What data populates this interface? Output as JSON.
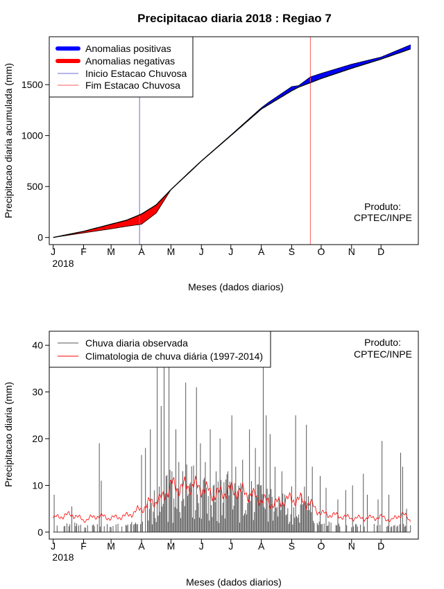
{
  "chart_data": [
    {
      "type": "area",
      "title": "Precipitacao diaria 2018 : Regiao 7",
      "xlabel": "Meses (dados diarios)",
      "ylabel": "Precipitacao diaria acumulada (mm)",
      "year_label": "2018",
      "month_labels": [
        "J",
        "F",
        "M",
        "A",
        "M",
        "J",
        "J",
        "A",
        "S",
        "O",
        "N",
        "D"
      ],
      "yticks": [
        0,
        500,
        1000,
        1500
      ],
      "ylim": [
        -70,
        1970
      ],
      "xlim_days": [
        -4,
        372
      ],
      "product_label": [
        "Produto:",
        "CPTEC/INPE"
      ],
      "legend": {
        "position": "top-left",
        "items": [
          {
            "label": "Anomalias positivas",
            "color": "#0000ff",
            "style": "thick"
          },
          {
            "label": "Anomalias negativas",
            "color": "#ff0000",
            "style": "thick"
          },
          {
            "label": "Inicio Estacao Chuvosa",
            "color": "#6b6bd6",
            "style": "thin"
          },
          {
            "label": "Fim Estacao Chuvosa",
            "color": "#ff5a5a",
            "style": "thin"
          }
        ]
      },
      "rainy_season_start_day": 88,
      "rainy_season_end_day": 262,
      "climatology_cumulative": {
        "day": [
          0,
          31,
          59,
          75,
          90,
          105,
          120,
          140,
          151,
          181,
          212,
          243,
          250,
          265,
          273,
          304,
          334,
          364
        ],
        "value": [
          0,
          60,
          130,
          170,
          230,
          320,
          470,
          650,
          750,
          1000,
          1260,
          1440,
          1475,
          1530,
          1560,
          1660,
          1750,
          1850
        ]
      },
      "observed_cumulative": {
        "day": [
          0,
          31,
          59,
          75,
          90,
          105,
          120,
          140,
          151,
          181,
          212,
          220,
          243,
          250,
          262,
          273,
          304,
          334,
          364
        ],
        "value": [
          0,
          45,
          85,
          110,
          130,
          240,
          470,
          655,
          752,
          1005,
          1272,
          1330,
          1480,
          1490,
          1575,
          1610,
          1700,
          1770,
          1890
        ]
      }
    },
    {
      "type": "bar",
      "title": "",
      "xlabel": "Meses (dados diarios)",
      "ylabel": "Precipitacao diaria (mm)",
      "year_label": "2018",
      "month_labels": [
        "J",
        "F",
        "M",
        "A",
        "M",
        "J",
        "J",
        "A",
        "S",
        "O",
        "N",
        "D"
      ],
      "yticks": [
        0,
        10,
        20,
        30,
        40
      ],
      "ylim": [
        -1.5,
        43
      ],
      "xlim_days": [
        -4,
        372
      ],
      "product_label": [
        "Produto:",
        "CPTEC/INPE"
      ],
      "legend": {
        "position": "top-left",
        "items": [
          {
            "label": "Chuva diaria observada",
            "color": "#555555"
          },
          {
            "label": "Climatologia de chuva diária (1997-2014)",
            "color": "#ff0000"
          }
        ]
      },
      "observed_peaks": [
        {
          "day": 1,
          "value": 8
        },
        {
          "day": 19,
          "value": 5.5
        },
        {
          "day": 47,
          "value": 19
        },
        {
          "day": 49,
          "value": 11
        },
        {
          "day": 90,
          "value": 16.5
        },
        {
          "day": 94,
          "value": 18
        },
        {
          "day": 99,
          "value": 22
        },
        {
          "day": 106,
          "value": 43
        },
        {
          "day": 110,
          "value": 27
        },
        {
          "day": 113,
          "value": 36
        },
        {
          "day": 115,
          "value": 12
        },
        {
          "day": 118,
          "value": 40
        },
        {
          "day": 125,
          "value": 22
        },
        {
          "day": 128,
          "value": 15
        },
        {
          "day": 135,
          "value": 32
        },
        {
          "day": 146,
          "value": 31
        },
        {
          "day": 150,
          "value": 19
        },
        {
          "day": 155,
          "value": 15
        },
        {
          "day": 160,
          "value": 22
        },
        {
          "day": 166,
          "value": 13
        },
        {
          "day": 170,
          "value": 20
        },
        {
          "day": 178,
          "value": 13
        },
        {
          "day": 182,
          "value": 25
        },
        {
          "day": 186,
          "value": 14
        },
        {
          "day": 193,
          "value": 15.5
        },
        {
          "day": 200,
          "value": 22
        },
        {
          "day": 206,
          "value": 18
        },
        {
          "day": 210,
          "value": 14
        },
        {
          "day": 214,
          "value": 40
        },
        {
          "day": 217,
          "value": 25
        },
        {
          "day": 221,
          "value": 21
        },
        {
          "day": 226,
          "value": 14
        },
        {
          "day": 233,
          "value": 13
        },
        {
          "day": 247,
          "value": 25
        },
        {
          "day": 258,
          "value": 23
        },
        {
          "day": 264,
          "value": 14
        },
        {
          "day": 272,
          "value": 12
        },
        {
          "day": 278,
          "value": 9.5
        },
        {
          "day": 290,
          "value": 7
        },
        {
          "day": 298,
          "value": 9
        },
        {
          "day": 305,
          "value": 10
        },
        {
          "day": 316,
          "value": 12.5
        },
        {
          "day": 320,
          "value": 8
        },
        {
          "day": 331,
          "value": 7
        },
        {
          "day": 335,
          "value": 19.5
        },
        {
          "day": 342,
          "value": 8
        },
        {
          "day": 354,
          "value": 17
        },
        {
          "day": 356,
          "value": 14
        },
        {
          "day": 360,
          "value": 5
        }
      ],
      "climatology": {
        "day": [
          0,
          10,
          20,
          31,
          45,
          59,
          75,
          90,
          100,
          110,
          120,
          130,
          140,
          151,
          165,
          181,
          195,
          212,
          225,
          240,
          250,
          262,
          273,
          290,
          304,
          320,
          334,
          345,
          355,
          364
        ],
        "value": [
          3,
          3.5,
          3.8,
          2.5,
          3.5,
          3,
          3.5,
          5,
          6.5,
          7,
          10,
          9.5,
          10,
          9.5,
          8,
          9,
          8.5,
          7,
          6,
          7,
          7,
          6,
          4,
          3.5,
          3,
          3,
          3.2,
          2.5,
          4,
          2.5
        ]
      }
    }
  ]
}
